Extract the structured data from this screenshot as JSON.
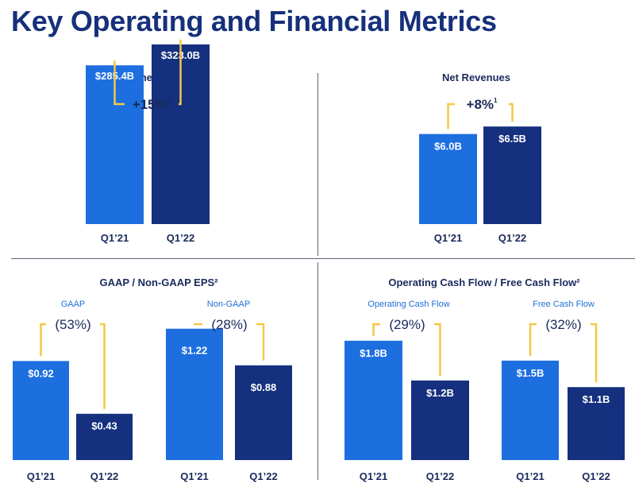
{
  "page_title": "Key Operating and Financial Metrics",
  "colors": {
    "q1_21": "#1d6fe0",
    "q1_22": "#14307e",
    "connector": "#f5c842",
    "text": "#1a2a5c"
  },
  "panels": {
    "tpv": {
      "title": "Total Payment Volume"
    },
    "net_revenues": {
      "title": "Net Revenues"
    },
    "eps": {
      "title": "GAAP / Non-GAAP EPS²"
    },
    "cash_flow": {
      "title": "Operating Cash Flow / Free Cash Flow²"
    }
  },
  "chart_data": [
    {
      "id": "tpv",
      "type": "bar",
      "title": "Total Payment Volume",
      "categories": [
        "Q1’21",
        "Q1’22"
      ],
      "values": [
        285.4,
        323.0
      ],
      "labels": [
        "$285.4B",
        "$323.0B"
      ],
      "change": "+15%",
      "change_note": "1",
      "ylim": [
        0,
        400
      ]
    },
    {
      "id": "net_revenues",
      "type": "bar",
      "title": "Net Revenues",
      "categories": [
        "Q1’21",
        "Q1’22"
      ],
      "values": [
        6.0,
        6.5
      ],
      "labels": [
        "$6.0B",
        "$6.5B"
      ],
      "change": "+8%",
      "change_note": "1",
      "ylim": [
        0,
        9.0
      ]
    },
    {
      "id": "gaap_eps",
      "type": "bar",
      "title": "GAAP",
      "categories": [
        "Q1’21",
        "Q1’22"
      ],
      "values": [
        0.92,
        0.43
      ],
      "labels": [
        "$0.92",
        "$0.43"
      ],
      "change": "(53%)",
      "ylim": [
        0,
        1.55
      ]
    },
    {
      "id": "non_gaap_eps",
      "type": "bar",
      "title": "Non-GAAP",
      "categories": [
        "Q1’21",
        "Q1’22"
      ],
      "values": [
        1.22,
        0.88
      ],
      "labels": [
        "$1.22",
        "$0.88"
      ],
      "change": "(28%)",
      "ylim": [
        0,
        1.55
      ]
    },
    {
      "id": "operating_cash_flow",
      "type": "bar",
      "title": "Operating Cash Flow",
      "categories": [
        "Q1’21",
        "Q1’22"
      ],
      "values": [
        1.8,
        1.2
      ],
      "labels": [
        "$1.8B",
        "$1.2B"
      ],
      "change": "(29%)",
      "ylim": [
        0,
        2.9
      ]
    },
    {
      "id": "free_cash_flow",
      "type": "bar",
      "title": "Free Cash Flow",
      "categories": [
        "Q1’21",
        "Q1’22"
      ],
      "values": [
        1.5,
        1.1
      ],
      "labels": [
        "$1.5B",
        "$1.1B"
      ],
      "change": "(32%)",
      "ylim": [
        0,
        2.9
      ]
    }
  ]
}
